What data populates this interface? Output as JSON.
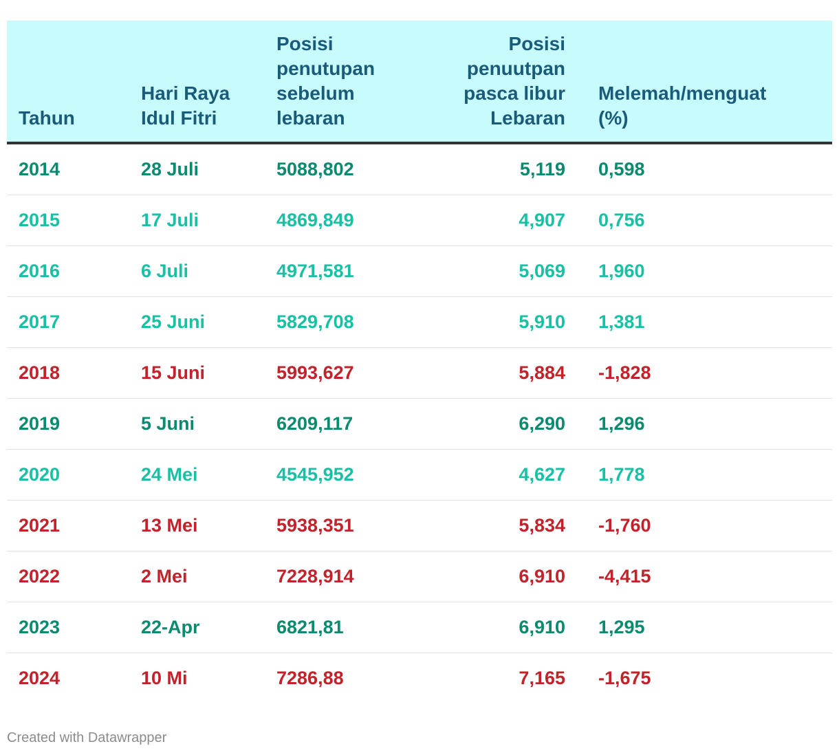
{
  "chart_data": {
    "type": "table",
    "columns": [
      "Tahun",
      "Hari Raya Idul Fitri",
      "Posisi penutupan sebelum lebaran",
      "Posisi penuutpan pasca libur Lebaran",
      "Melemah/menguat (%)"
    ],
    "rows": [
      {
        "tahun": "2014",
        "hari_raya": "28 Juli",
        "sebelum": "5088,802",
        "pasca": "5,119",
        "persen": "0,598",
        "color": "#0a8a6e"
      },
      {
        "tahun": "2015",
        "hari_raya": "17 Juli",
        "sebelum": "4869,849",
        "pasca": "4,907",
        "persen": "0,756",
        "color": "#19c0a3"
      },
      {
        "tahun": "2016",
        "hari_raya": "6 Juli",
        "sebelum": "4971,581",
        "pasca": "5,069",
        "persen": "1,960",
        "color": "#19c0a3"
      },
      {
        "tahun": "2017",
        "hari_raya": "25 Juni",
        "sebelum": "5829,708",
        "pasca": "5,910",
        "persen": "1,381",
        "color": "#19c0a3"
      },
      {
        "tahun": "2018",
        "hari_raya": "15 Juni",
        "sebelum": "5993,627",
        "pasca": "5,884",
        "persen": "-1,828",
        "color": "#c3222a"
      },
      {
        "tahun": "2019",
        "hari_raya": "5 Juni",
        "sebelum": "6209,117",
        "pasca": "6,290",
        "persen": "1,296",
        "color": "#0a8a6e"
      },
      {
        "tahun": "2020",
        "hari_raya": "24 Mei",
        "sebelum": "4545,952",
        "pasca": "4,627",
        "persen": "1,778",
        "color": "#19c0a3"
      },
      {
        "tahun": "2021",
        "hari_raya": "13 Mei",
        "sebelum": "5938,351",
        "pasca": "5,834",
        "persen": "-1,760",
        "color": "#c3222a"
      },
      {
        "tahun": "2022",
        "hari_raya": "2 Mei",
        "sebelum": "7228,914",
        "pasca": "6,910",
        "persen": "-4,415",
        "color": "#c3222a"
      },
      {
        "tahun": "2023",
        "hari_raya": "22-Apr",
        "sebelum": "6821,81",
        "pasca": "6,910",
        "persen": "1,295",
        "color": "#0a8a6e"
      },
      {
        "tahun": "2024",
        "hari_raya": "10 Mi",
        "sebelum": "7286,88",
        "pasca": "7,165",
        "persen": "-1,675",
        "color": "#c3222a"
      }
    ]
  },
  "header": {
    "col0": [
      "Tahun"
    ],
    "col1": [
      "Hari Raya",
      "Idul Fitri"
    ],
    "col2": [
      "Posisi",
      "penutupan",
      "sebelum",
      "lebaran"
    ],
    "col3": [
      "Posisi",
      "penuutpan",
      "pasca libur",
      "Lebaran"
    ],
    "col4": [
      "Melemah/menguat",
      "(%)"
    ]
  },
  "colors": {
    "header_bg": "#c8fbfc",
    "header_text": "#1a5b7a",
    "dark_green": "#0a8a6e",
    "light_green": "#19c0a3",
    "red": "#c3222a"
  },
  "footer": {
    "credit": "Created with Datawrapper"
  }
}
